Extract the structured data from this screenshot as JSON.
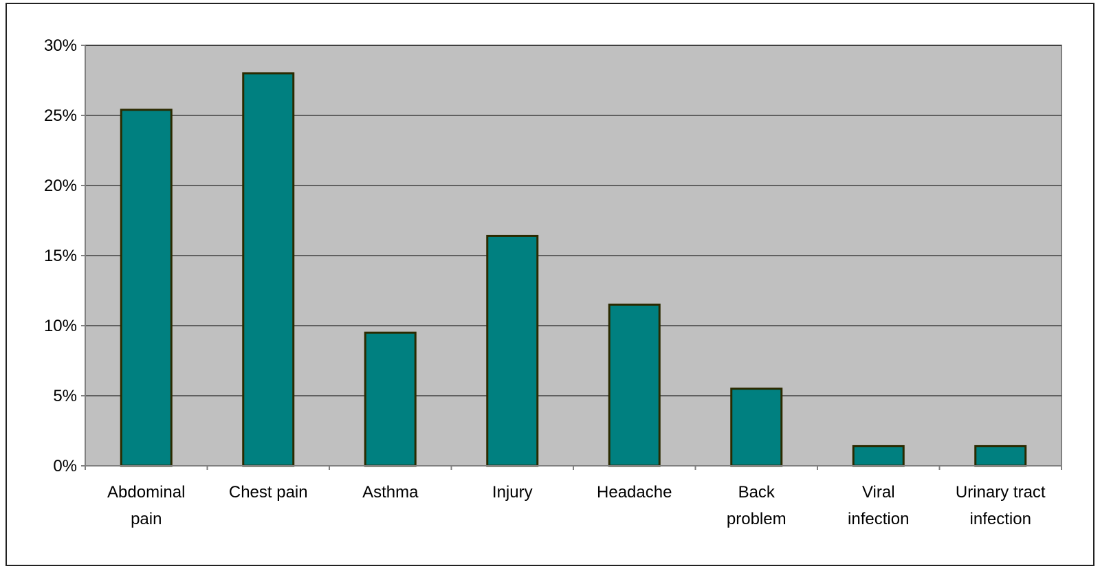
{
  "chart_data": {
    "type": "bar",
    "categories": [
      [
        "Abdominal",
        "pain"
      ],
      [
        "Chest pain"
      ],
      [
        "Asthma"
      ],
      [
        "Injury"
      ],
      [
        "Headache"
      ],
      [
        "Back",
        "problem"
      ],
      [
        "Viral",
        "infection"
      ],
      [
        "Urinary tract",
        "infection"
      ]
    ],
    "values": [
      25.4,
      28.0,
      9.5,
      16.4,
      11.5,
      5.5,
      1.4,
      1.4
    ],
    "ylim": [
      0,
      30
    ],
    "yticks": [
      0,
      5,
      10,
      15,
      20,
      25,
      30
    ],
    "ytick_labels": [
      "0%",
      "5%",
      "10%",
      "15%",
      "20%",
      "25%",
      "30%"
    ],
    "grid": true,
    "colors": {
      "bar_fill": "#008080",
      "bar_stroke": "#2b2a00",
      "plot_background": "#c0c0c0",
      "gridline": "#000000",
      "axis": "#808080"
    }
  }
}
